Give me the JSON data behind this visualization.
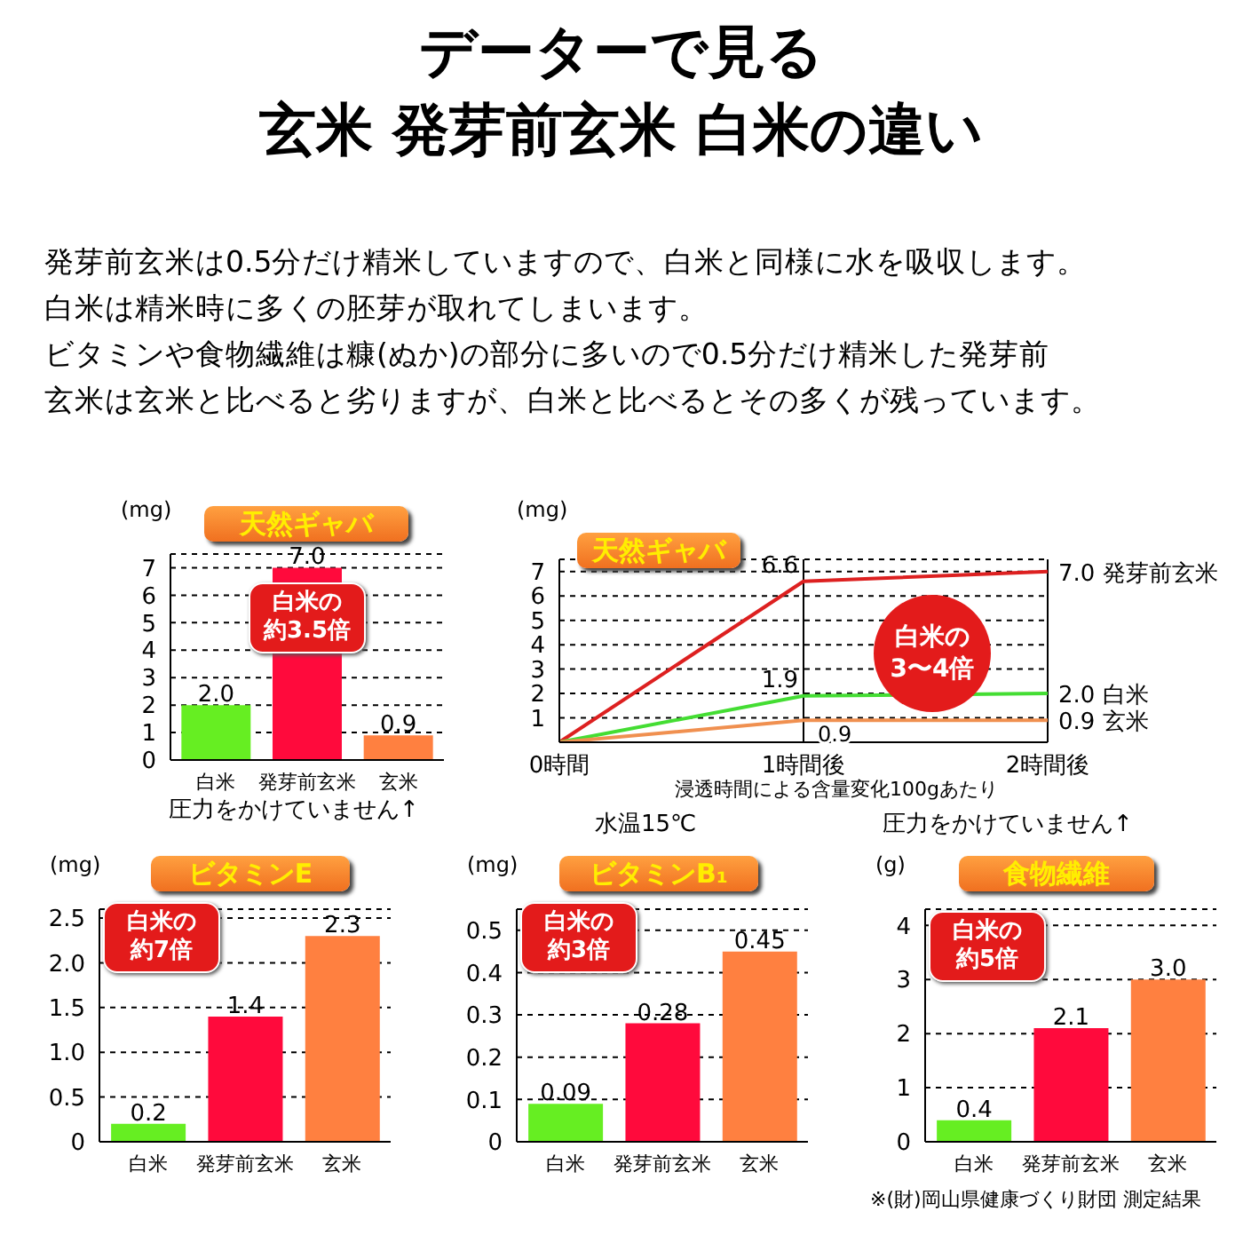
{
  "chart_data": [
    {
      "type": "bar",
      "title": "天然ギャバ",
      "ylabel": "(mg)",
      "categories": [
        "白米",
        "発芽前玄米",
        "玄米"
      ],
      "values": [
        2.0,
        7.0,
        0.9
      ],
      "value_labels": [
        "2.0",
        "7.0",
        "0.9"
      ],
      "colors": [
        "#66ee22",
        "#ff0a3c",
        "#ff8040"
      ],
      "ylim": [
        0,
        7.5
      ],
      "yticks": [
        0,
        1,
        2,
        3,
        4,
        5,
        6,
        7
      ],
      "grid": "y",
      "legend": false,
      "annotations": [
        "データーで見る",
        "玄米 発芽前玄米 白米の違い",
        "発芽前玄米は0.5分だけ精米していますので、白米と同様に水を吸収します。",
        "白米は精米時に多くの胚芽が取れてしまいます。",
        "ビタミンや食物繊維は糠(ぬか)の部分に多いので0.5分だけ精米した発芽前",
        "玄米は玄米と比べると劣りますが、白米と比べるとその多くが残っています。",
        "白米の約3.5倍",
        "圧力をかけていません↑"
      ]
    },
    {
      "type": "line",
      "title": "天然ギャバ",
      "ylabel": "(mg)",
      "xlabel": "浸透時間による含量変化100gあたり",
      "categories": [
        "0時間",
        "1時間後",
        "2時間後"
      ],
      "ylim": [
        0,
        7.5
      ],
      "yticks": [
        {
          "value": 0,
          "label": null
        },
        1,
        2,
        3,
        4,
        5,
        6,
        7
      ],
      "grid": "y",
      "legend": false,
      "ref_lines": [
        {
          "axis": "x",
          "value": "1時間後",
          "color": "#000000"
        },
        {
          "axis": "x",
          "value": "2時間後",
          "color": "#000000"
        }
      ],
      "series": [
        {
          "name": "発芽前玄米",
          "color": "#dd2020",
          "values": [
            0,
            6.6,
            7.0
          ],
          "value_labels": [
            null,
            "6.6",
            "7.0"
          ]
        },
        {
          "name": "白米",
          "color": "#44dd33",
          "values": [
            0,
            1.9,
            2.0
          ],
          "value_labels": [
            null,
            "1.9",
            "2.0"
          ]
        },
        {
          "name": "玄米",
          "color": "#f09050",
          "values": [
            0,
            0.9,
            0.9
          ],
          "value_labels": [
            null,
            "0.9",
            "0.9"
          ]
        }
      ],
      "annotations": [
        "白米の3〜4倍",
        "水温15℃",
        "圧力をかけていません↑"
      ]
    },
    {
      "type": "bar",
      "title": "ビタミンE",
      "ylabel": "(mg)",
      "categories": [
        "白米",
        "発芽前玄米",
        "玄米"
      ],
      "values": [
        0.2,
        1.4,
        2.3
      ],
      "value_labels": [
        "0.2",
        "1.4",
        "2.3"
      ],
      "colors": [
        "#66ee22",
        "#ff0a3c",
        "#ff8040"
      ],
      "ylim": [
        0,
        2.6
      ],
      "yticks": [
        0,
        0.5,
        {
          "value": 1,
          "label": "1.0"
        },
        1.5,
        {
          "value": 2,
          "label": "2.0"
        },
        2.5
      ],
      "grid": "y",
      "legend": false,
      "annotations": [
        "白米の約7倍"
      ]
    },
    {
      "type": "bar",
      "title": "ビタミンB₁",
      "ylabel": "(mg)",
      "categories": [
        "白米",
        "発芽前玄米",
        "玄米"
      ],
      "values": [
        0.09,
        0.28,
        0.45
      ],
      "value_labels": [
        "0.09",
        "0.28",
        "0.45"
      ],
      "colors": [
        "#66ee22",
        "#ff0a3c",
        "#ff8040"
      ],
      "ylim": [
        0,
        0.55
      ],
      "yticks": [
        0,
        0.1,
        0.2,
        0.3,
        0.4,
        0.5
      ],
      "grid": "y",
      "legend": false,
      "annotations": [
        "白米の約3倍"
      ]
    },
    {
      "type": "bar",
      "title": "食物繊維",
      "ylabel": "(g)",
      "categories": [
        "白米",
        "発芽前玄米",
        "玄米"
      ],
      "values": [
        0.4,
        2.1,
        3.0
      ],
      "value_labels": [
        "0.4",
        "2.1",
        "3.0"
      ],
      "colors": [
        "#66ee22",
        "#ff0a3c",
        "#ff8040"
      ],
      "ylim": [
        0,
        4.3
      ],
      "yticks": [
        0,
        1,
        2,
        3,
        4
      ],
      "grid": "y",
      "legend": false,
      "annotations": [
        "白米の約5倍",
        "※(財)岡山県健康づくり財団 測定結果"
      ]
    }
  ]
}
